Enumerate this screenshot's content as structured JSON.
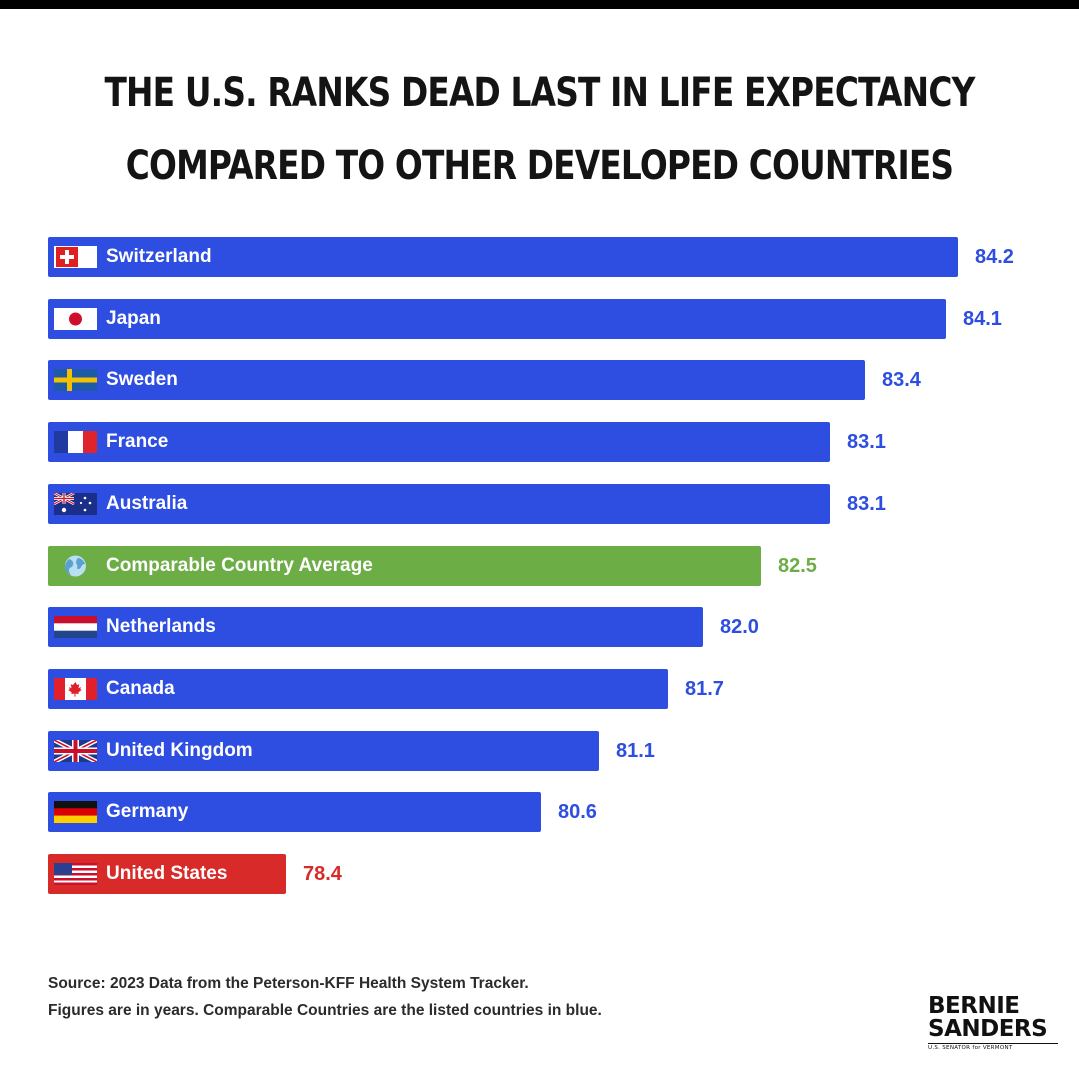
{
  "title": {
    "line1": "THE U.S. RANKS DEAD LAST IN LIFE EXPECTANCY",
    "line2": "COMPARED TO OTHER DEVELOPED COUNTRIES"
  },
  "colors": {
    "comparable": "#2d4ee0",
    "average": "#6cad45",
    "us": "#d92a2a"
  },
  "chart_data": {
    "type": "bar",
    "orientation": "horizontal",
    "title": "THE U.S. RANKS DEAD LAST IN LIFE EXPECTANCY COMPARED TO OTHER DEVELOPED COUNTRIES",
    "unit": "years",
    "xlim": [
      0,
      84.2
    ],
    "categories": [
      "Switzerland",
      "Japan",
      "Sweden",
      "France",
      "Australia",
      "Comparable Country Average",
      "Netherlands",
      "Canada",
      "United Kingdom",
      "Germany",
      "United States"
    ],
    "values": [
      84.2,
      84.1,
      83.4,
      83.1,
      83.1,
      82.5,
      82.0,
      81.7,
      81.1,
      80.6,
      78.4
    ],
    "value_labels": [
      "84.2",
      "84.1",
      "83.4",
      "83.1",
      "83.1",
      "82.5",
      "82.0",
      "81.7",
      "81.1",
      "80.6",
      "78.4"
    ],
    "groups": [
      "comparable",
      "comparable",
      "comparable",
      "comparable",
      "comparable",
      "average",
      "comparable",
      "comparable",
      "comparable",
      "comparable",
      "us"
    ],
    "flags": [
      "switzerland-flag-icon",
      "japan-flag-icon",
      "sweden-flag-icon",
      "france-flag-icon",
      "australia-flag-icon",
      "globe-icon",
      "netherlands-flag-icon",
      "canada-flag-icon",
      "united-kingdom-flag-icon",
      "germany-flag-icon",
      "united-states-flag-icon"
    ]
  },
  "source": {
    "line1": "Source: 2023 Data from the Peterson-KFF Health System Tracker.",
    "line2": "Figures are in years. Comparable Countries are the listed countries in blue."
  },
  "logo": {
    "first": "BERNIE",
    "last": "SANDERS",
    "sub": "U.S. SENATOR for VERMONT"
  }
}
